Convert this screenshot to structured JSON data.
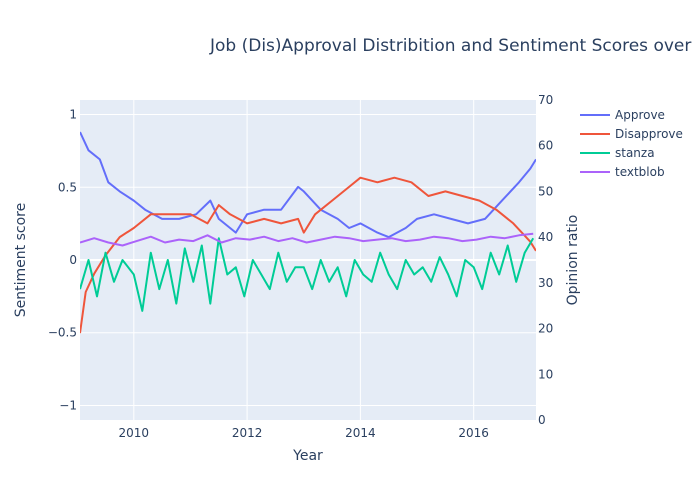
{
  "chart_data": {
    "type": "line",
    "title": "Job (Dis)Approval Distribition and Sentiment Scores over",
    "xlabel": "Year",
    "ylabel": "Sentiment score",
    "y2label": "Opinion ratio",
    "xlim": [
      2009.05,
      2017.1
    ],
    "ylim": [
      -1.1,
      1.1
    ],
    "y2lim": [
      0,
      70
    ],
    "x_ticks": [
      "2010",
      "2012",
      "2014",
      "2016"
    ],
    "y_ticks": [
      "1",
      "0.5",
      "0",
      "−0.5",
      "−1"
    ],
    "y2_ticks": [
      "70",
      "60",
      "50",
      "40",
      "30",
      "20",
      "10",
      "0"
    ],
    "grid": true,
    "legend": "top-right",
    "series": [
      {
        "name": "Approve",
        "axis": "y2",
        "color": "#636efa",
        "x": [
          2009.05,
          2009.2,
          2009.4,
          2009.55,
          2009.75,
          2010.0,
          2010.2,
          2010.5,
          2010.8,
          2011.1,
          2011.35,
          2011.5,
          2011.8,
          2012.0,
          2012.3,
          2012.6,
          2012.9,
          2013.0,
          2013.3,
          2013.6,
          2013.8,
          2014.0,
          2014.3,
          2014.5,
          2014.8,
          2015.0,
          2015.3,
          2015.6,
          2015.9,
          2016.2,
          2016.5,
          2016.8,
          2017.0,
          2017.1
        ],
        "y": [
          63,
          59,
          57,
          52,
          50,
          48,
          46,
          44,
          44,
          45,
          48,
          44,
          41,
          45,
          46,
          46,
          51,
          50,
          46,
          44,
          42,
          43,
          41,
          40,
          42,
          44,
          45,
          44,
          43,
          44,
          48,
          52,
          55,
          57
        ]
      },
      {
        "name": "Disapprove",
        "axis": "y2",
        "color": "#ef553b",
        "x": [
          2009.05,
          2009.15,
          2009.3,
          2009.5,
          2009.75,
          2010.0,
          2010.3,
          2010.6,
          2011.0,
          2011.3,
          2011.5,
          2011.7,
          2012.0,
          2012.3,
          2012.6,
          2012.9,
          2013.0,
          2013.2,
          2013.5,
          2013.8,
          2014.0,
          2014.3,
          2014.6,
          2014.9,
          2015.2,
          2015.5,
          2015.8,
          2016.1,
          2016.4,
          2016.7,
          2017.0,
          2017.1
        ],
        "y": [
          19,
          28,
          32,
          36,
          40,
          42,
          45,
          45,
          45,
          43,
          47,
          45,
          43,
          44,
          43,
          44,
          41,
          45,
          48,
          51,
          53,
          52,
          53,
          52,
          49,
          50,
          49,
          48,
          46,
          43,
          39,
          37
        ]
      },
      {
        "name": "stanza",
        "axis": "y",
        "color": "#00cc96",
        "x": [
          2009.05,
          2009.2,
          2009.35,
          2009.5,
          2009.65,
          2009.8,
          2010.0,
          2010.15,
          2010.3,
          2010.45,
          2010.6,
          2010.75,
          2010.9,
          2011.05,
          2011.2,
          2011.35,
          2011.5,
          2011.65,
          2011.8,
          2011.95,
          2012.1,
          2012.25,
          2012.4,
          2012.55,
          2012.7,
          2012.85,
          2013.0,
          2013.15,
          2013.3,
          2013.45,
          2013.6,
          2013.75,
          2013.9,
          2014.05,
          2014.2,
          2014.35,
          2014.5,
          2014.65,
          2014.8,
          2014.95,
          2015.1,
          2015.25,
          2015.4,
          2015.55,
          2015.7,
          2015.85,
          2016.0,
          2016.15,
          2016.3,
          2016.45,
          2016.6,
          2016.75,
          2016.9,
          2017.05
        ],
        "y": [
          -0.2,
          0.0,
          -0.25,
          0.05,
          -0.15,
          0.0,
          -0.1,
          -0.35,
          0.05,
          -0.2,
          0.0,
          -0.3,
          0.08,
          -0.15,
          0.1,
          -0.3,
          0.15,
          -0.1,
          -0.05,
          -0.25,
          0.0,
          -0.1,
          -0.2,
          0.05,
          -0.15,
          -0.05,
          -0.05,
          -0.2,
          0.0,
          -0.15,
          -0.05,
          -0.25,
          0.0,
          -0.1,
          -0.15,
          0.05,
          -0.1,
          -0.2,
          0.0,
          -0.1,
          -0.05,
          -0.15,
          0.02,
          -0.1,
          -0.25,
          0.0,
          -0.05,
          -0.2,
          0.05,
          -0.1,
          0.1,
          -0.15,
          0.05,
          0.15
        ]
      },
      {
        "name": "textblob",
        "axis": "y",
        "color": "#ab63fa",
        "x": [
          2009.05,
          2009.3,
          2009.55,
          2009.8,
          2010.05,
          2010.3,
          2010.55,
          2010.8,
          2011.05,
          2011.3,
          2011.55,
          2011.8,
          2012.05,
          2012.3,
          2012.55,
          2012.8,
          2013.05,
          2013.3,
          2013.55,
          2013.8,
          2014.05,
          2014.3,
          2014.55,
          2014.8,
          2015.05,
          2015.3,
          2015.55,
          2015.8,
          2016.05,
          2016.3,
          2016.55,
          2016.8,
          2017.05
        ],
        "y": [
          0.12,
          0.15,
          0.12,
          0.1,
          0.13,
          0.16,
          0.12,
          0.14,
          0.13,
          0.17,
          0.12,
          0.15,
          0.14,
          0.16,
          0.13,
          0.15,
          0.12,
          0.14,
          0.16,
          0.15,
          0.13,
          0.14,
          0.15,
          0.13,
          0.14,
          0.16,
          0.15,
          0.13,
          0.14,
          0.16,
          0.15,
          0.17,
          0.18
        ]
      }
    ]
  }
}
